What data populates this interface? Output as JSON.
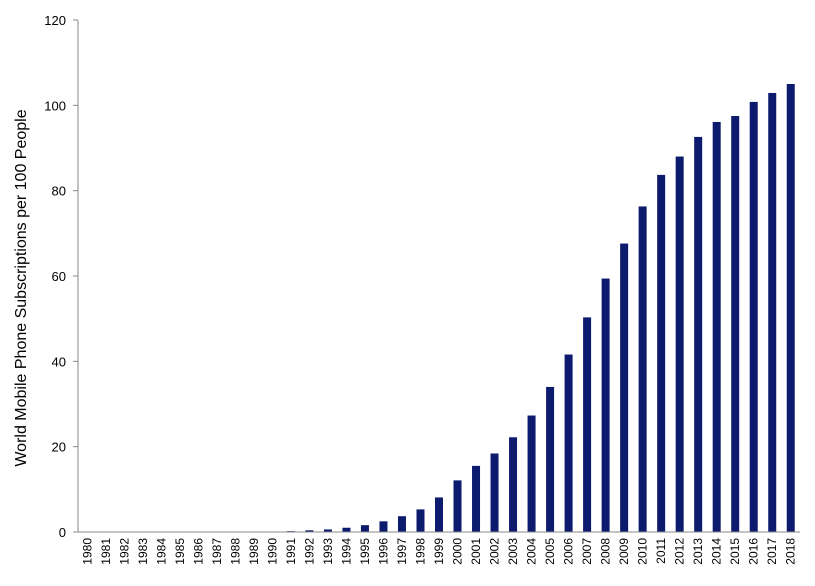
{
  "chart_data": {
    "type": "bar",
    "title": "",
    "xlabel": "",
    "ylabel": "World  Mobile Phone Subscriptions per 100 People",
    "ylim": [
      0,
      120
    ],
    "yticks": [
      0,
      20,
      40,
      60,
      80,
      100,
      120
    ],
    "grid": false,
    "bar_color": "#0d1b6e",
    "categories": [
      "1980",
      "1981",
      "1982",
      "1983",
      "1984",
      "1985",
      "1986",
      "1987",
      "1988",
      "1989",
      "1990",
      "1991",
      "1992",
      "1993",
      "1994",
      "1995",
      "1996",
      "1997",
      "1998",
      "1999",
      "2000",
      "2001",
      "2002",
      "2003",
      "2004",
      "2005",
      "2006",
      "2007",
      "2008",
      "2009",
      "2010",
      "2011",
      "2012",
      "2013",
      "2014",
      "2015",
      "2016",
      "2017",
      "2018"
    ],
    "values": [
      0,
      0,
      0,
      0,
      0,
      0,
      0,
      0,
      0,
      0,
      0.1,
      0.2,
      0.4,
      0.6,
      1.0,
      1.6,
      2.5,
      3.7,
      5.3,
      8.1,
      12.1,
      15.5,
      18.4,
      22.2,
      27.3,
      34.0,
      41.6,
      50.3,
      59.4,
      67.6,
      76.3,
      83.7,
      88.0,
      92.6,
      96.1,
      97.5,
      100.8,
      102.9,
      105.0
    ]
  }
}
